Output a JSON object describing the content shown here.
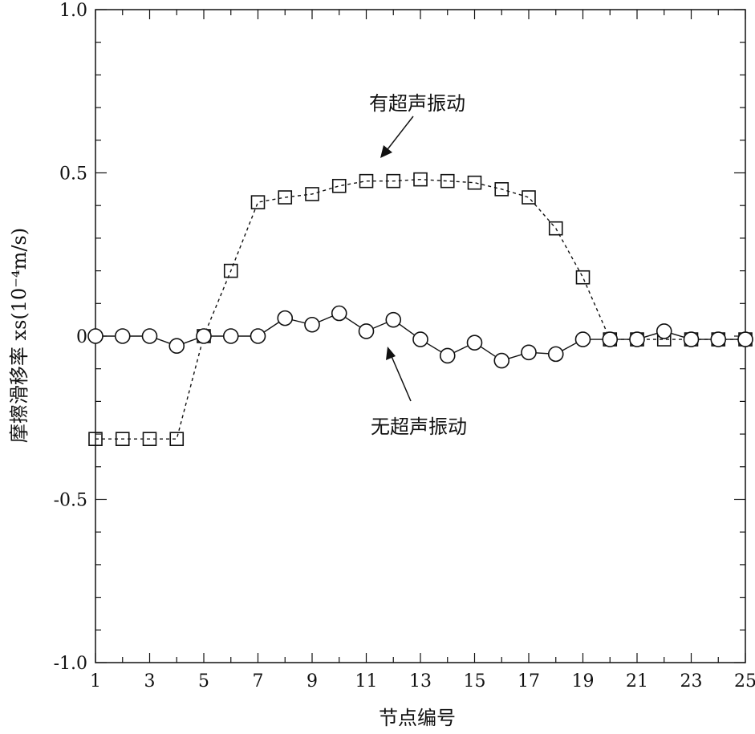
{
  "chart_data": {
    "type": "line",
    "title": "",
    "xlabel": "节点编号",
    "ylabel": "摩擦滑移率 xs(10⁻⁴m/s)",
    "xlim": [
      1,
      25
    ],
    "ylim": [
      -1.0,
      1.0
    ],
    "x": [
      1,
      2,
      3,
      4,
      5,
      6,
      7,
      8,
      9,
      10,
      11,
      12,
      13,
      14,
      15,
      16,
      17,
      18,
      19,
      20,
      21,
      22,
      23,
      24,
      25
    ],
    "xticks": [
      "1",
      "3",
      "5",
      "7",
      "9",
      "11",
      "13",
      "15",
      "17",
      "19",
      "21",
      "23",
      "25"
    ],
    "yticks": [
      "-1.0",
      "-0.5",
      "0",
      "0.5",
      "1.0"
    ],
    "grid": false,
    "series": [
      {
        "name": "有超声振动",
        "marker": "square",
        "line": "dotted",
        "values": [
          -0.315,
          -0.315,
          -0.315,
          -0.315,
          0,
          0.2,
          0.41,
          0.425,
          0.435,
          0.46,
          0.475,
          0.475,
          0.48,
          0.475,
          0.47,
          0.45,
          0.425,
          0.33,
          0.18,
          -0.01,
          -0.01,
          -0.01,
          -0.01,
          -0.01,
          -0.01
        ]
      },
      {
        "name": "无超声振动",
        "marker": "circle",
        "line": "solid",
        "values": [
          0,
          0,
          0,
          -0.03,
          0,
          0,
          0,
          0.055,
          0.035,
          0.07,
          0.015,
          0.05,
          -0.01,
          -0.06,
          -0.02,
          -0.075,
          -0.05,
          -0.055,
          -0.01,
          -0.01,
          -0.01,
          0.015,
          -0.01,
          -0.01,
          -0.01
        ]
      }
    ],
    "annotations": [
      "有超声振动",
      "无超声振动"
    ]
  }
}
